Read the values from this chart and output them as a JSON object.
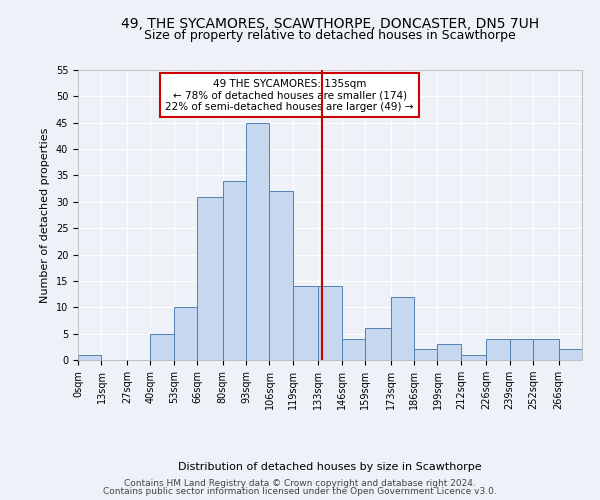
{
  "title": "49, THE SYCAMORES, SCAWTHORPE, DONCASTER, DN5 7UH",
  "subtitle": "Size of property relative to detached houses in Scawthorpe",
  "xlabel": "Distribution of detached houses by size in Scawthorpe",
  "ylabel": "Number of detached properties",
  "bin_labels": [
    "0sqm",
    "13sqm",
    "27sqm",
    "40sqm",
    "53sqm",
    "66sqm",
    "80sqm",
    "93sqm",
    "106sqm",
    "119sqm",
    "133sqm",
    "146sqm",
    "159sqm",
    "173sqm",
    "186sqm",
    "199sqm",
    "212sqm",
    "226sqm",
    "239sqm",
    "252sqm",
    "266sqm"
  ],
  "bar_heights": [
    1,
    0,
    0,
    5,
    10,
    31,
    34,
    45,
    32,
    14,
    14,
    4,
    6,
    12,
    2,
    3,
    1,
    4,
    4,
    4,
    2
  ],
  "bar_color": "#c5d8f0",
  "bar_edge_color": "#5580b0",
  "vline_x": 135,
  "vline_color": "#cc0000",
  "annotation_text": "49 THE SYCAMORES: 135sqm\n← 78% of detached houses are smaller (174)\n22% of semi-detached houses are larger (49) →",
  "annotation_box_color": "#ffffff",
  "annotation_box_edge": "#cc0000",
  "ylim": [
    0,
    55
  ],
  "yticks": [
    0,
    5,
    10,
    15,
    20,
    25,
    30,
    35,
    40,
    45,
    50,
    55
  ],
  "bin_edges": [
    0,
    13,
    27,
    40,
    53,
    66,
    80,
    93,
    106,
    119,
    133,
    146,
    159,
    173,
    186,
    199,
    212,
    226,
    239,
    252,
    266,
    279
  ],
  "footer1": "Contains HM Land Registry data © Crown copyright and database right 2024.",
  "footer2": "Contains public sector information licensed under the Open Government Licence v3.0.",
  "background_color": "#eef2f8",
  "plot_bg_color": "#eef2f8",
  "grid_color": "#ffffff",
  "title_fontsize": 10,
  "subtitle_fontsize": 9,
  "axis_label_fontsize": 8,
  "tick_fontsize": 7,
  "annotation_fontsize": 7.5,
  "footer_fontsize": 6.5
}
